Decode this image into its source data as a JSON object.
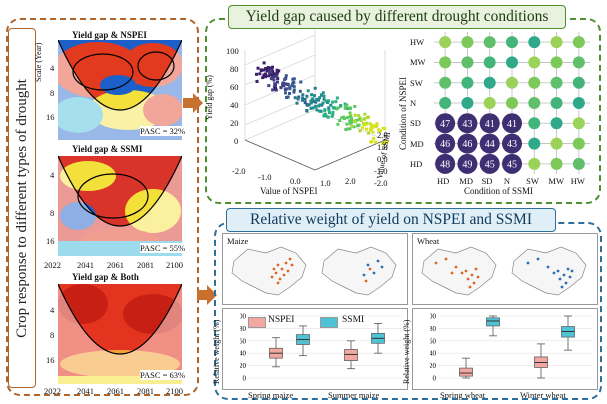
{
  "left_panel": {
    "side_title": "Crop response to different types of drought",
    "panels": [
      {
        "title": "Yield gap & NSPEI",
        "pasc": "PASC = 32%"
      },
      {
        "title": "Yield gap & SSMI",
        "pasc": "PASC = 55%"
      },
      {
        "title": "Yield gap & Both",
        "pasc": "PASC = 63%"
      }
    ],
    "y_label": "Scale (Year)",
    "y_ticks": [
      "4",
      "8",
      "16"
    ],
    "x_ticks": [
      "2022",
      "2041",
      "2061",
      "2081",
      "2100"
    ]
  },
  "top_section": {
    "title": "Yield gap caused by different drought conditions",
    "scatter3d": {
      "ylabel": "Yield gap (%)",
      "xlabel": "Value of NSPEI",
      "zlabel": "Value of SSMI",
      "x_ticks": [
        "-2.0",
        "-1.0",
        "0.0",
        "1.0",
        "2.0"
      ],
      "y_ticks": [
        "0",
        "20",
        "40",
        "60",
        "80",
        "100"
      ],
      "z_ticks": [
        "2.0",
        "1.0",
        "0.0",
        "-1.0",
        "-2.0"
      ]
    },
    "matrix": {
      "ylabel": "Condition of NSPEI",
      "xlabel": "Condition of SSMI",
      "row_labels": [
        "HW",
        "MW",
        "SW",
        "N",
        "SD",
        "MD",
        "HD"
      ],
      "col_labels": [
        "HD",
        "MD",
        "SD",
        "N",
        "SW",
        "MW",
        "HW"
      ],
      "values": [
        [
          "",
          "",
          "",
          "",
          "",
          "",
          ""
        ],
        [
          "",
          "",
          "",
          "",
          "",
          "",
          ""
        ],
        [
          "",
          "",
          "",
          "",
          "",
          "",
          ""
        ],
        [
          "",
          "",
          "",
          "",
          "",
          "",
          ""
        ],
        [
          "47",
          "43",
          "41",
          "41",
          "",
          "",
          ""
        ],
        [
          "46",
          "46",
          "44",
          "43",
          "",
          "",
          ""
        ],
        [
          "48",
          "49",
          "45",
          "45",
          "",
          "",
          ""
        ]
      ]
    }
  },
  "bottom_section": {
    "title": "Relative weight of yield on NSPEI and SSMI",
    "maps": [
      {
        "label": "Maize"
      },
      {
        "label": "Wheat"
      }
    ],
    "legend": [
      "NSPEI",
      "SSMI"
    ],
    "ylabel": "Relative weight (%)",
    "y_ticks": [
      "0",
      "20",
      "40",
      "60",
      "80",
      "100"
    ],
    "maize_categories": [
      "Spring maize",
      "Summer maize"
    ],
    "wheat_categories": [
      "Spring wheat",
      "Winter wheat"
    ]
  },
  "chart_data": [
    {
      "type": "box",
      "ylabel": "Relative weight (%)",
      "ylim": [
        0,
        100
      ],
      "categories": [
        "Spring maize",
        "Summer maize"
      ],
      "series": [
        {
          "name": "NSPEI",
          "q1": [
            32,
            28
          ],
          "median": [
            40,
            38
          ],
          "q3": [
            48,
            46
          ],
          "whisker_low": [
            18,
            15
          ],
          "whisker_high": [
            65,
            60
          ]
        },
        {
          "name": "SSMI",
          "q1": [
            54,
            56
          ],
          "median": [
            62,
            64
          ],
          "q3": [
            70,
            72
          ],
          "whisker_low": [
            36,
            40
          ],
          "whisker_high": [
            84,
            88
          ]
        }
      ]
    },
    {
      "type": "box",
      "ylabel": "Relative weight (%)",
      "ylim": [
        0,
        100
      ],
      "categories": [
        "Spring wheat",
        "Winter wheat"
      ],
      "series": [
        {
          "name": "NSPEI",
          "q1": [
            3,
            17
          ],
          "median": [
            8,
            25
          ],
          "q3": [
            16,
            34
          ],
          "whisker_low": [
            0,
            0
          ],
          "whisker_high": [
            32,
            55
          ]
        },
        {
          "name": "SSMI",
          "q1": [
            84,
            66
          ],
          "median": [
            92,
            75
          ],
          "q3": [
            97,
            83
          ],
          "whisker_low": [
            68,
            45
          ],
          "whisker_high": [
            100,
            100
          ]
        }
      ]
    }
  ],
  "colors": {
    "orange_border": "#b0642a",
    "green_border": "#4f8f2f",
    "blue_border": "#2b6f9a",
    "nspei": "#f2a7a0",
    "ssmi": "#4fc3d6",
    "arrow": "#c8702e"
  }
}
